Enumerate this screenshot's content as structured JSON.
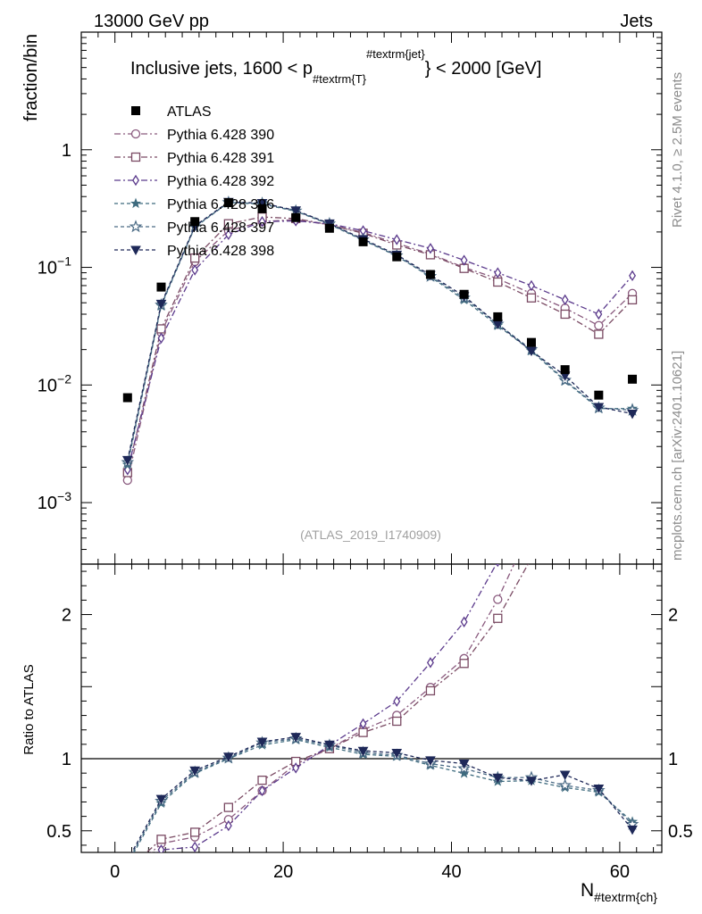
{
  "header": {
    "left": "13000 GeV pp",
    "right": "Jets",
    "side_rivet": "Rivet 4.1.0, ≥ 2.5M events",
    "side_mcplots": "mcplots.cern.ch [arXiv:2401.10621]",
    "analysis": "(ATLAS_2019_I1740909)"
  },
  "chart_data": {
    "type": "scatter",
    "title": "Inclusive jets, 1600 < p_{#textrm{T}}^{#textrm{jet}} < 2000 [GeV]",
    "title_parts": {
      "main": "Inclusive jets, 1600 < p",
      "sub": "#textrm{T}",
      "sup": "#textrm{jet}",
      "tail": "} < 2000 [GeV]"
    },
    "xlabel": "N",
    "xlabel_sub": "#textrm{ch}",
    "ylabel": "fraction/bin",
    "ratio_ylabel": "Ratio to ATLAS",
    "xlim": [
      -4,
      65
    ],
    "ylim": [
      0.0003,
      10
    ],
    "ratio_ylim": [
      0.35,
      2.35
    ],
    "x_ticks": [
      0,
      20,
      40,
      60
    ],
    "y_ticks": [
      {
        "value": 0.001,
        "label": "10",
        "exp": "−3"
      },
      {
        "value": 0.01,
        "label": "10",
        "exp": "−2"
      },
      {
        "value": 0.1,
        "label": "10",
        "exp": "−1"
      },
      {
        "value": 1,
        "label": "1",
        "exp": ""
      }
    ],
    "ratio_ticks": [
      {
        "value": 0.5,
        "label": "0.5"
      },
      {
        "value": 1,
        "label": "1"
      },
      {
        "value": 2,
        "label": "2"
      }
    ],
    "x": [
      1.5,
      5.5,
      9.5,
      13.5,
      17.5,
      21.5,
      25.5,
      29.5,
      33.5,
      37.5,
      41.5,
      45.5,
      49.5,
      53.5,
      57.5,
      61.5
    ],
    "data": {
      "name": "ATLAS",
      "values": [
        0.0078,
        0.068,
        0.245,
        0.355,
        0.315,
        0.265,
        0.215,
        0.165,
        0.123,
        0.087,
        0.059,
        0.038,
        0.023,
        0.0135,
        0.0082,
        0.0112
      ]
    },
    "series": [
      {
        "name": "Pythia 6.428 390",
        "color": "#8a5a7e",
        "marker": "circle",
        "dash": "7,3,2,3",
        "values": [
          0.00155,
          0.028,
          0.112,
          0.205,
          0.245,
          0.255,
          0.23,
          0.198,
          0.16,
          0.13,
          0.1,
          0.08,
          0.06,
          0.045,
          0.032,
          0.06
        ]
      },
      {
        "name": "Pythia 6.428 391",
        "color": "#7a4a63",
        "marker": "square",
        "dash": "7,3,2,3",
        "values": [
          0.0018,
          0.03,
          0.12,
          0.235,
          0.268,
          0.26,
          0.23,
          0.195,
          0.155,
          0.128,
          0.098,
          0.075,
          0.055,
          0.04,
          0.027,
          0.053
        ]
      },
      {
        "name": "Pythia 6.428 392",
        "color": "#5b3a8c",
        "marker": "diamond",
        "dash": "7,3,2,3",
        "values": [
          0.0019,
          0.025,
          0.095,
          0.19,
          0.245,
          0.248,
          0.235,
          0.205,
          0.172,
          0.145,
          0.115,
          0.09,
          0.07,
          0.053,
          0.04,
          0.085
        ]
      },
      {
        "name": "Pythia 6.428 396",
        "color": "#3e6b7e",
        "marker": "star",
        "dash": "4,3",
        "values": [
          0.0021,
          0.047,
          0.22,
          0.355,
          0.345,
          0.3,
          0.232,
          0.17,
          0.125,
          0.083,
          0.053,
          0.032,
          0.0195,
          0.0108,
          0.0063,
          0.0063
        ]
      },
      {
        "name": "Pythia 6.428 397",
        "color": "#4a6a85",
        "marker": "star-open",
        "dash": "4,3",
        "values": [
          0.0022,
          0.048,
          0.222,
          0.357,
          0.35,
          0.302,
          0.235,
          0.172,
          0.126,
          0.084,
          0.055,
          0.033,
          0.02,
          0.011,
          0.0064,
          0.0061
        ]
      },
      {
        "name": "Pythia 6.428 398",
        "color": "#1e2858",
        "marker": "triangle-down",
        "dash": "4,3",
        "values": [
          0.0023,
          0.049,
          0.225,
          0.36,
          0.352,
          0.305,
          0.236,
          0.174,
          0.128,
          0.086,
          0.057,
          0.033,
          0.0195,
          0.012,
          0.0065,
          0.0057
        ]
      }
    ]
  }
}
